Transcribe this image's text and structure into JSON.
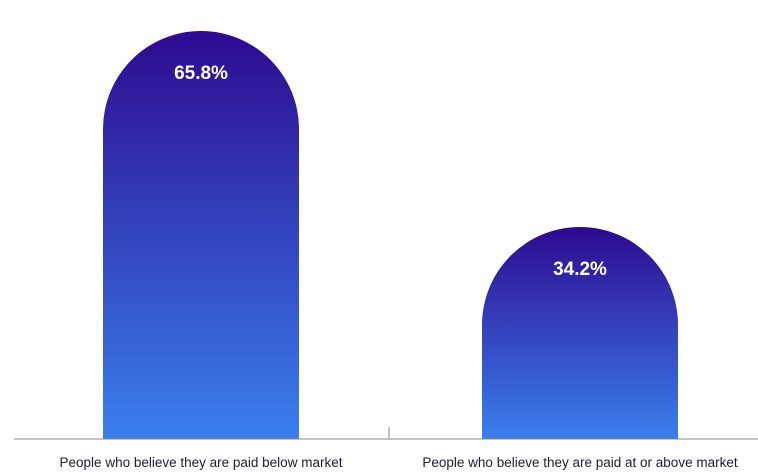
{
  "chart_data": {
    "type": "bar",
    "categories": [
      "People who believe they are paid below market",
      "People who believe they are paid at or above market"
    ],
    "values": [
      65.8,
      34.2
    ],
    "value_labels": [
      "65.8%",
      "34.2%"
    ],
    "ylim": [
      0,
      70
    ],
    "grid": false,
    "legend": "none",
    "colors": {
      "bar_top": "#2e0a8f",
      "bar_bottom": "#3a7fee",
      "axis": "#888888"
    }
  }
}
